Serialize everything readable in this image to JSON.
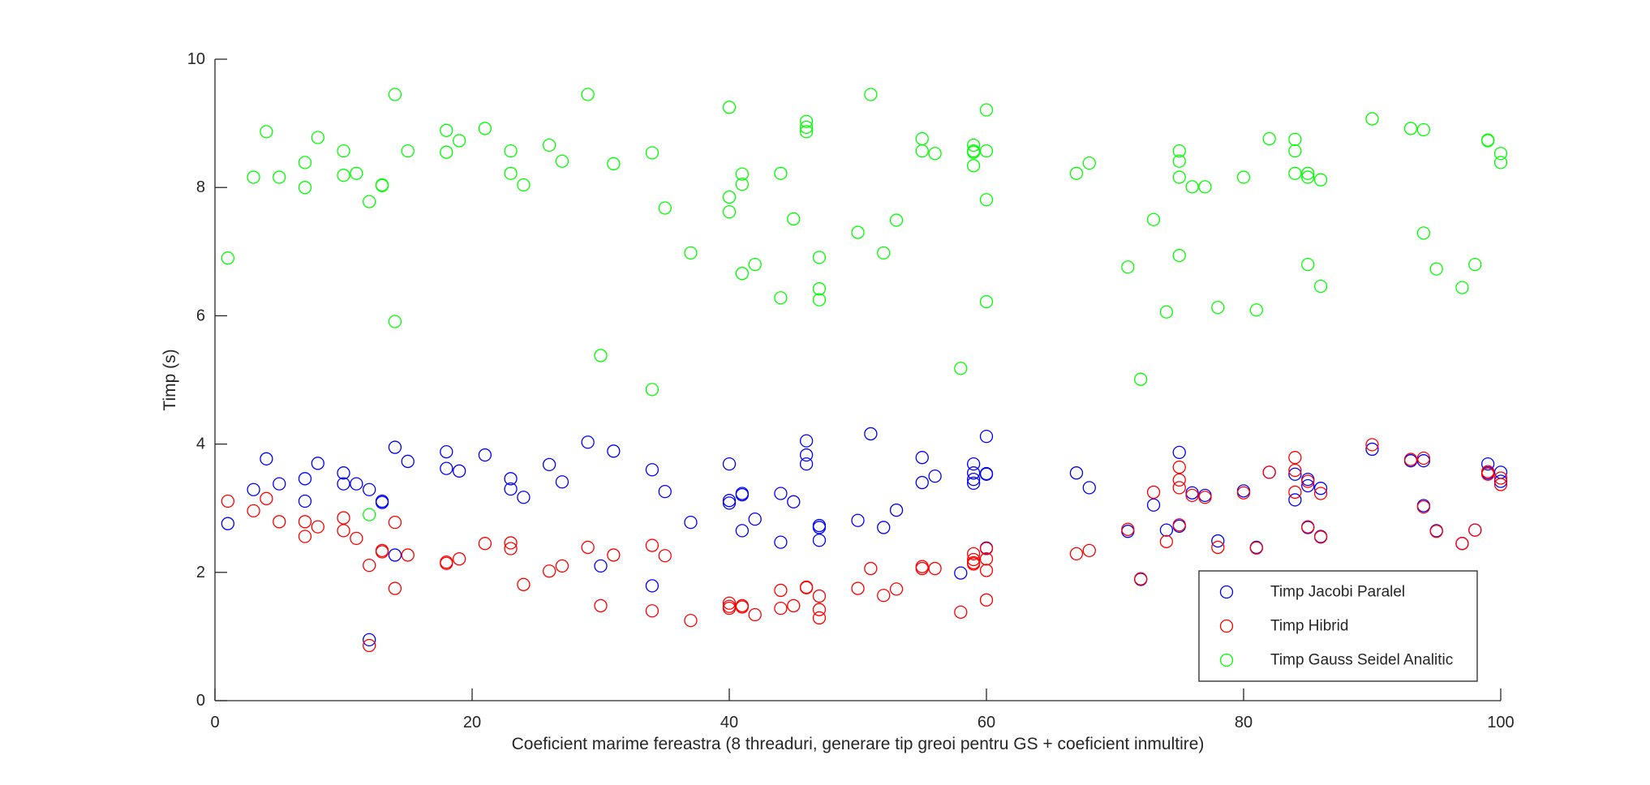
{
  "chart_data": {
    "type": "scatter",
    "xlabel": "Coeficient marime fereastra (8 threaduri, generare tip greoi pentru GS + coeficient inmultire)",
    "ylabel": "Timp (s)",
    "xlim": [
      0,
      100
    ],
    "ylim": [
      0,
      10
    ],
    "xticks": [
      "0",
      "20",
      "40",
      "60",
      "80",
      "100"
    ],
    "yticks": [
      "0",
      "2",
      "4",
      "6",
      "8",
      "10"
    ],
    "grid": false,
    "legend_position": "bottom-right",
    "marker": "open-circle",
    "series": [
      {
        "name": "Timp Jacobi Paralel",
        "color": "#0000ff",
        "points": [
          [
            1,
            2.76
          ],
          [
            3,
            3.29
          ],
          [
            4,
            3.77
          ],
          [
            5,
            3.38
          ],
          [
            7,
            3.46
          ],
          [
            7,
            3.11
          ],
          [
            8,
            3.7
          ],
          [
            10,
            3.55
          ],
          [
            10,
            3.38
          ],
          [
            11,
            3.38
          ],
          [
            12,
            3.29
          ],
          [
            12,
            0.95
          ],
          [
            13,
            3.11
          ],
          [
            13,
            3.09
          ],
          [
            14,
            3.95
          ],
          [
            14,
            2.27
          ],
          [
            15,
            3.73
          ],
          [
            18,
            3.88
          ],
          [
            18,
            3.62
          ],
          [
            19,
            3.58
          ],
          [
            21,
            3.83
          ],
          [
            23,
            3.46
          ],
          [
            23,
            3.3
          ],
          [
            24,
            3.17
          ],
          [
            26,
            3.68
          ],
          [
            27,
            3.41
          ],
          [
            29,
            4.03
          ],
          [
            30,
            2.1
          ],
          [
            31,
            3.89
          ],
          [
            34,
            3.6
          ],
          [
            34,
            1.79
          ],
          [
            35,
            3.26
          ],
          [
            37,
            2.78
          ],
          [
            40,
            3.69
          ],
          [
            40,
            3.12
          ],
          [
            40,
            3.08
          ],
          [
            41,
            3.23
          ],
          [
            41,
            3.21
          ],
          [
            41,
            2.65
          ],
          [
            42,
            2.83
          ],
          [
            44,
            3.23
          ],
          [
            44,
            2.47
          ],
          [
            45,
            3.1
          ],
          [
            46,
            4.05
          ],
          [
            46,
            3.83
          ],
          [
            46,
            3.69
          ],
          [
            47,
            2.73
          ],
          [
            47,
            2.7
          ],
          [
            47,
            2.5
          ],
          [
            50,
            2.81
          ],
          [
            51,
            4.16
          ],
          [
            52,
            2.7
          ],
          [
            53,
            2.97
          ],
          [
            55,
            3.79
          ],
          [
            55,
            3.4
          ],
          [
            56,
            3.5
          ],
          [
            58,
            1.99
          ],
          [
            59,
            3.69
          ],
          [
            59,
            3.55
          ],
          [
            59,
            3.45
          ],
          [
            59,
            3.39
          ],
          [
            60,
            4.12
          ],
          [
            60,
            3.54
          ],
          [
            60,
            3.53
          ],
          [
            60,
            2.38
          ],
          [
            67,
            3.55
          ],
          [
            68,
            3.32
          ],
          [
            71,
            2.64
          ],
          [
            72,
            1.89
          ],
          [
            73,
            3.05
          ],
          [
            74,
            2.66
          ],
          [
            75,
            3.87
          ],
          [
            75,
            2.72
          ],
          [
            76,
            3.24
          ],
          [
            77,
            3.2
          ],
          [
            78,
            2.49
          ],
          [
            80,
            3.27
          ],
          [
            81,
            2.39
          ],
          [
            82,
            3.56
          ],
          [
            84,
            3.53
          ],
          [
            84,
            3.13
          ],
          [
            85,
            3.45
          ],
          [
            85,
            3.35
          ],
          [
            85,
            2.7
          ],
          [
            86,
            3.31
          ],
          [
            86,
            2.56
          ],
          [
            90,
            3.92
          ],
          [
            93,
            3.74
          ],
          [
            94,
            3.74
          ],
          [
            94,
            3.04
          ],
          [
            95,
            2.65
          ],
          [
            97,
            2.45
          ],
          [
            98,
            2.66
          ],
          [
            99,
            3.69
          ],
          [
            99,
            3.55
          ],
          [
            100,
            3.56
          ],
          [
            100,
            3.42
          ]
        ]
      },
      {
        "name": "Timp Hibrid",
        "color": "#ff0000",
        "points": [
          [
            1,
            3.11
          ],
          [
            3,
            2.96
          ],
          [
            4,
            3.15
          ],
          [
            5,
            2.79
          ],
          [
            7,
            2.79
          ],
          [
            7,
            2.56
          ],
          [
            8,
            2.71
          ],
          [
            10,
            2.85
          ],
          [
            10,
            2.65
          ],
          [
            11,
            2.53
          ],
          [
            12,
            2.11
          ],
          [
            12,
            0.86
          ],
          [
            13,
            2.34
          ],
          [
            13,
            2.32
          ],
          [
            14,
            2.78
          ],
          [
            14,
            1.75
          ],
          [
            15,
            2.27
          ],
          [
            18,
            2.16
          ],
          [
            18,
            2.14
          ],
          [
            19,
            2.21
          ],
          [
            21,
            2.45
          ],
          [
            23,
            2.46
          ],
          [
            23,
            2.37
          ],
          [
            24,
            1.81
          ],
          [
            26,
            2.02
          ],
          [
            27,
            2.1
          ],
          [
            29,
            2.39
          ],
          [
            30,
            1.48
          ],
          [
            31,
            2.27
          ],
          [
            34,
            2.42
          ],
          [
            34,
            1.4
          ],
          [
            35,
            2.26
          ],
          [
            37,
            1.25
          ],
          [
            40,
            1.52
          ],
          [
            40,
            1.47
          ],
          [
            40,
            1.44
          ],
          [
            41,
            1.48
          ],
          [
            41,
            1.46
          ],
          [
            42,
            1.34
          ],
          [
            44,
            1.72
          ],
          [
            44,
            1.44
          ],
          [
            45,
            1.48
          ],
          [
            46,
            1.77
          ],
          [
            46,
            1.76
          ],
          [
            47,
            1.63
          ],
          [
            47,
            1.42
          ],
          [
            47,
            1.29
          ],
          [
            50,
            1.75
          ],
          [
            51,
            2.06
          ],
          [
            52,
            1.64
          ],
          [
            53,
            1.74
          ],
          [
            55,
            2.09
          ],
          [
            55,
            2.06
          ],
          [
            56,
            2.06
          ],
          [
            58,
            1.38
          ],
          [
            59,
            2.29
          ],
          [
            59,
            2.2
          ],
          [
            59,
            2.15
          ],
          [
            59,
            2.13
          ],
          [
            60,
            2.37
          ],
          [
            60,
            2.21
          ],
          [
            60,
            2.03
          ],
          [
            60,
            1.57
          ],
          [
            67,
            2.29
          ],
          [
            68,
            2.34
          ],
          [
            71,
            2.67
          ],
          [
            72,
            1.9
          ],
          [
            73,
            3.25
          ],
          [
            74,
            2.48
          ],
          [
            75,
            3.64
          ],
          [
            75,
            3.44
          ],
          [
            75,
            3.32
          ],
          [
            75,
            2.74
          ],
          [
            76,
            3.2
          ],
          [
            77,
            3.17
          ],
          [
            78,
            2.39
          ],
          [
            80,
            3.24
          ],
          [
            81,
            2.38
          ],
          [
            82,
            3.56
          ],
          [
            84,
            3.79
          ],
          [
            84,
            3.59
          ],
          [
            84,
            3.25
          ],
          [
            85,
            3.42
          ],
          [
            85,
            2.71
          ],
          [
            86,
            3.23
          ],
          [
            86,
            2.55
          ],
          [
            90,
            3.99
          ],
          [
            93,
            3.76
          ],
          [
            94,
            3.78
          ],
          [
            94,
            3.02
          ],
          [
            95,
            2.64
          ],
          [
            97,
            2.45
          ],
          [
            98,
            2.66
          ],
          [
            99,
            3.57
          ],
          [
            99,
            3.53
          ],
          [
            100,
            3.47
          ],
          [
            100,
            3.37
          ]
        ]
      },
      {
        "name": "Timp Gauss Seidel Analitic",
        "color": "#00ff00",
        "points": [
          [
            1,
            6.9
          ],
          [
            3,
            8.16
          ],
          [
            4,
            8.87
          ],
          [
            5,
            8.16
          ],
          [
            7,
            8.39
          ],
          [
            7,
            8.0
          ],
          [
            8,
            8.78
          ],
          [
            10,
            8.57
          ],
          [
            10,
            8.19
          ],
          [
            11,
            8.22
          ],
          [
            12,
            7.78
          ],
          [
            12,
            2.9
          ],
          [
            13,
            8.04
          ],
          [
            13,
            8.03
          ],
          [
            14,
            9.45
          ],
          [
            14,
            5.91
          ],
          [
            15,
            8.57
          ],
          [
            18,
            8.89
          ],
          [
            18,
            8.55
          ],
          [
            19,
            8.73
          ],
          [
            21,
            8.92
          ],
          [
            23,
            8.57
          ],
          [
            23,
            8.22
          ],
          [
            24,
            8.04
          ],
          [
            26,
            8.66
          ],
          [
            27,
            8.41
          ],
          [
            29,
            9.45
          ],
          [
            30,
            5.38
          ],
          [
            31,
            8.37
          ],
          [
            34,
            8.54
          ],
          [
            34,
            4.85
          ],
          [
            35,
            7.68
          ],
          [
            37,
            6.98
          ],
          [
            40,
            9.25
          ],
          [
            40,
            7.85
          ],
          [
            40,
            7.62
          ],
          [
            41,
            8.21
          ],
          [
            41,
            8.05
          ],
          [
            41,
            6.66
          ],
          [
            42,
            6.8
          ],
          [
            44,
            8.22
          ],
          [
            44,
            6.28
          ],
          [
            45,
            7.51
          ],
          [
            46,
            9.03
          ],
          [
            46,
            8.94
          ],
          [
            46,
            8.87
          ],
          [
            47,
            6.91
          ],
          [
            47,
            6.42
          ],
          [
            47,
            6.25
          ],
          [
            50,
            7.3
          ],
          [
            51,
            9.45
          ],
          [
            52,
            6.98
          ],
          [
            53,
            7.49
          ],
          [
            55,
            8.76
          ],
          [
            55,
            8.57
          ],
          [
            56,
            8.53
          ],
          [
            58,
            5.18
          ],
          [
            59,
            8.66
          ],
          [
            59,
            8.57
          ],
          [
            59,
            8.55
          ],
          [
            59,
            8.34
          ],
          [
            60,
            9.21
          ],
          [
            60,
            8.57
          ],
          [
            60,
            7.81
          ],
          [
            60,
            6.22
          ],
          [
            67,
            8.22
          ],
          [
            68,
            8.38
          ],
          [
            71,
            6.76
          ],
          [
            72,
            5.01
          ],
          [
            73,
            7.5
          ],
          [
            74,
            6.06
          ],
          [
            75,
            8.57
          ],
          [
            75,
            8.41
          ],
          [
            75,
            8.16
          ],
          [
            75,
            6.94
          ],
          [
            76,
            8.01
          ],
          [
            77,
            8.01
          ],
          [
            78,
            6.13
          ],
          [
            80,
            8.16
          ],
          [
            81,
            6.09
          ],
          [
            82,
            8.76
          ],
          [
            84,
            8.75
          ],
          [
            84,
            8.57
          ],
          [
            84,
            8.22
          ],
          [
            85,
            8.22
          ],
          [
            85,
            8.16
          ],
          [
            85,
            6.8
          ],
          [
            86,
            8.12
          ],
          [
            86,
            6.46
          ],
          [
            90,
            9.07
          ],
          [
            93,
            8.92
          ],
          [
            94,
            8.9
          ],
          [
            94,
            7.29
          ],
          [
            95,
            6.73
          ],
          [
            97,
            6.44
          ],
          [
            98,
            6.8
          ],
          [
            99,
            8.74
          ],
          [
            99,
            8.73
          ],
          [
            100,
            8.53
          ],
          [
            100,
            8.39
          ]
        ]
      }
    ]
  }
}
